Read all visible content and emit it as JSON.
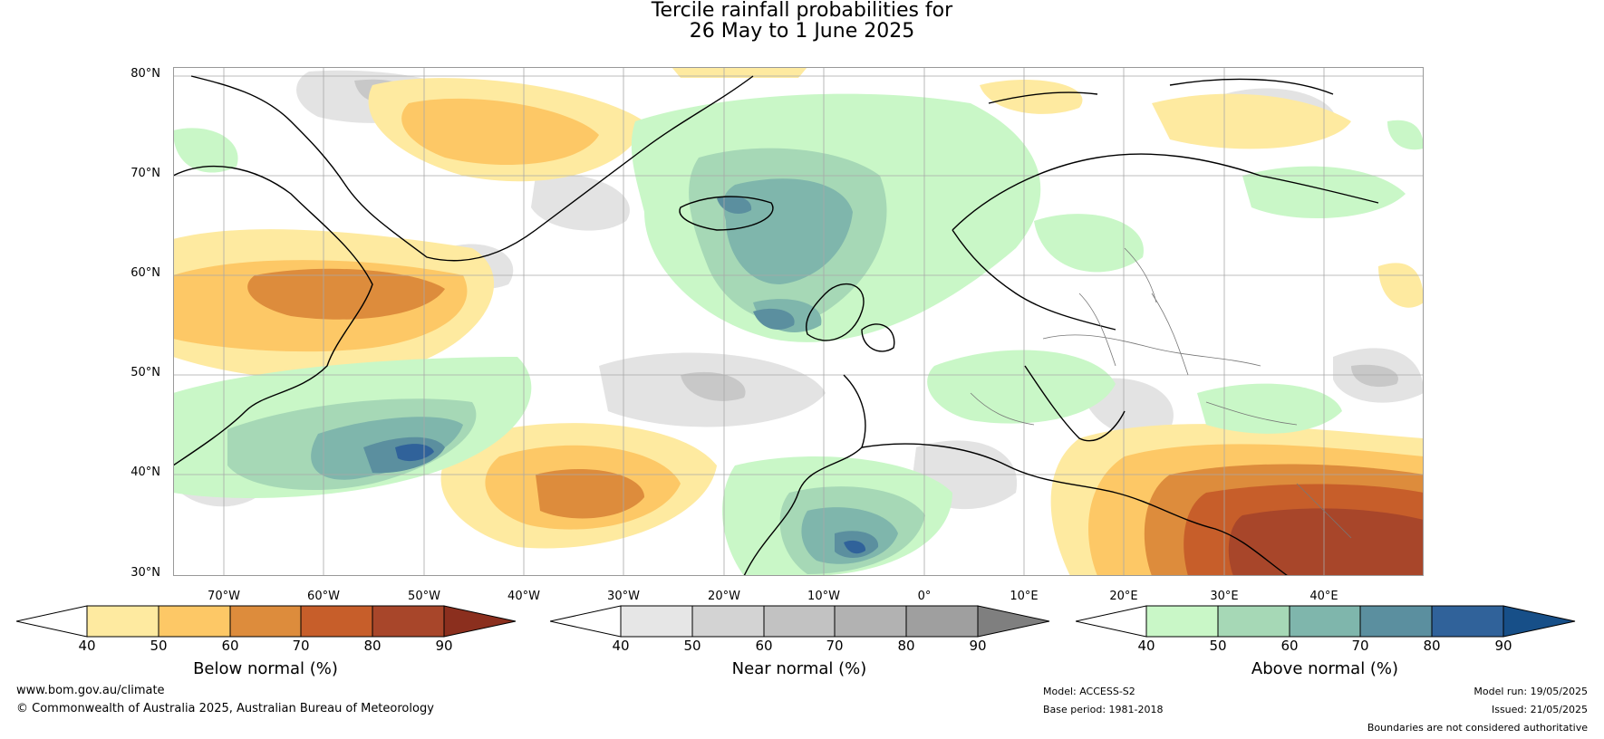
{
  "title": {
    "line1": "Tercile rainfall probabilities for",
    "line2": "26 May to 1 June 2025"
  },
  "map": {
    "latitude_labels": [
      "80°N",
      "70°N",
      "60°N",
      "50°N",
      "40°N",
      "30°N"
    ],
    "longitude_labels": [
      "70°W",
      "60°W",
      "50°W",
      "40°W",
      "30°W",
      "20°W",
      "10°W",
      "0°",
      "10°E",
      "20°E",
      "30°E",
      "40°E"
    ]
  },
  "colorbars": [
    {
      "label": "Below normal (%)",
      "ticks": [
        "40",
        "50",
        "60",
        "70",
        "80",
        "90"
      ],
      "colors": [
        "#ffffff",
        "#feeaa0",
        "#fdc866",
        "#dd8c3c",
        "#c75e2a",
        "#a8462a",
        "#8b2f1e"
      ]
    },
    {
      "label": "Near normal (%)",
      "ticks": [
        "40",
        "50",
        "60",
        "70",
        "80",
        "90"
      ],
      "colors": [
        "#ffffff",
        "#e6e6e6",
        "#d3d3d3",
        "#c2c2c2",
        "#b2b2b2",
        "#9f9f9f",
        "#7f7f7f"
      ]
    },
    {
      "label": "Above normal (%)",
      "ticks": [
        "40",
        "50",
        "60",
        "70",
        "80",
        "90"
      ],
      "colors": [
        "#ffffff",
        "#c9f7c7",
        "#a6d8b6",
        "#7fb6ac",
        "#5b8f9f",
        "#30629a",
        "#174f88"
      ]
    }
  ],
  "footer": {
    "website": "www.bom.gov.au/climate",
    "copyright": "© Commonwealth of Australia 2025, Australian Bureau of Meteorology",
    "model": "Model: ACCESS-S2",
    "base_period": "Base period: 1981-2018",
    "model_run": "Model run: 19/05/2025",
    "issued": "Issued: 21/05/2025",
    "disclaimer": "Boundaries are not considered authoritative"
  }
}
